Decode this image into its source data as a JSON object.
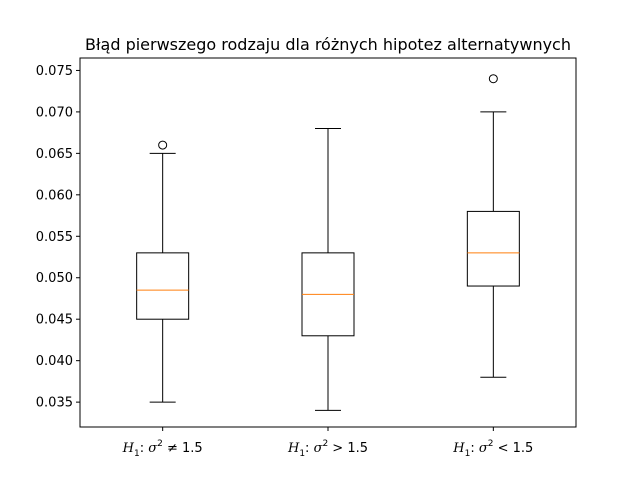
{
  "chart_data": {
    "type": "box",
    "title": "Błąd pierwszego rodzaju dla różnych hipotez alternatywnych",
    "xlabel": "",
    "ylabel": "",
    "ylim": [
      0.032,
      0.0765
    ],
    "yticks": [
      0.035,
      0.04,
      0.045,
      0.05,
      0.055,
      0.06,
      0.065,
      0.07,
      0.075
    ],
    "ytick_labels": [
      "0.035",
      "0.040",
      "0.045",
      "0.050",
      "0.055",
      "0.060",
      "0.065",
      "0.070",
      "0.075"
    ],
    "categories": [
      {
        "prefix": "H",
        "sub": "1",
        "sep": ": ",
        "var": "σ",
        "sup": "2",
        "rel": " ≠ 1.5"
      },
      {
        "prefix": "H",
        "sub": "1",
        "sep": ": ",
        "var": "σ",
        "sup": "2",
        "rel": " > 1.5"
      },
      {
        "prefix": "H",
        "sub": "1",
        "sep": ": ",
        "var": "σ",
        "sup": "2",
        "rel": " < 1.5"
      }
    ],
    "boxes": [
      {
        "whisker_low": 0.035,
        "q1": 0.045,
        "median": 0.0485,
        "q3": 0.053,
        "whisker_high": 0.065,
        "outliers": [
          0.066
        ]
      },
      {
        "whisker_low": 0.034,
        "q1": 0.043,
        "median": 0.048,
        "q3": 0.053,
        "whisker_high": 0.068,
        "outliers": []
      },
      {
        "whisker_low": 0.038,
        "q1": 0.049,
        "median": 0.053,
        "q3": 0.058,
        "whisker_high": 0.07,
        "outliers": [
          0.074
        ]
      }
    ],
    "colors": {
      "box": "#000000",
      "median": "#ff7f0e",
      "axes": "#000000"
    },
    "grid": false
  }
}
